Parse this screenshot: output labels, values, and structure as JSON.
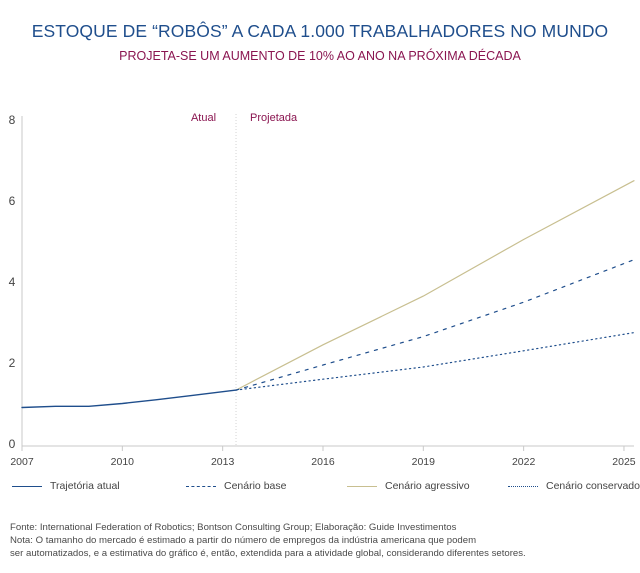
{
  "header": {
    "title": "ESTOQUE DE “ROBÔS” A CADA 1.000 TRABALHADORES NO MUNDO",
    "subtitle": "PROJETA-SE UM AUMENTO DE 10% AO ANO NA PRÓXIMA DÉCADA"
  },
  "chart_data": {
    "type": "line",
    "title": "ESTOQUE DE “ROBÔS” A CADA 1.000 TRABALHADORES NO MUNDO",
    "subtitle": "PROJETA-SE UM AUMENTO DE 10% AO ANO NA PRÓXIMA DÉCADA",
    "xlabel": "",
    "ylabel": "",
    "xlim": [
      2007,
      2025.3
    ],
    "ylim": [
      0,
      8
    ],
    "x_ticks": [
      2007,
      2010,
      2013,
      2016,
      2019,
      2022,
      2025
    ],
    "y_ticks": [
      0,
      2,
      4,
      6,
      8
    ],
    "grid": false,
    "legend_position": "bottom",
    "annotations": {
      "divider_x": 2013.4,
      "left_label": "Atual",
      "right_label": "Projetada"
    },
    "series": [
      {
        "name": "Trajetória atual",
        "style": "solid",
        "color": "#1f4e8c",
        "points": [
          [
            2007,
            0.95
          ],
          [
            2008,
            0.98
          ],
          [
            2009,
            0.98
          ],
          [
            2010,
            1.05
          ],
          [
            2011,
            1.14
          ],
          [
            2012,
            1.24
          ],
          [
            2013.4,
            1.38
          ]
        ]
      },
      {
        "name": "Cenário base",
        "style": "dashed",
        "color": "#1f4e8c",
        "points": [
          [
            2013.4,
            1.38
          ],
          [
            2016,
            2.0
          ],
          [
            2019,
            2.7
          ],
          [
            2022,
            3.55
          ],
          [
            2025.3,
            4.6
          ]
        ]
      },
      {
        "name": "Cenário agressivo",
        "style": "solid",
        "color": "#c8bf90",
        "points": [
          [
            2013.4,
            1.38
          ],
          [
            2016,
            2.5
          ],
          [
            2019,
            3.7
          ],
          [
            2022,
            5.1
          ],
          [
            2025.3,
            6.55
          ]
        ]
      },
      {
        "name": "Cenário conservador",
        "style": "dotted",
        "color": "#1f4e8c",
        "points": [
          [
            2013.4,
            1.38
          ],
          [
            2016,
            1.65
          ],
          [
            2019,
            1.95
          ],
          [
            2022,
            2.35
          ],
          [
            2025.3,
            2.8
          ]
        ]
      }
    ]
  },
  "footer": {
    "source": "Fonte: International Federation of Robotics; Bontson Consulting Group; Elaboração: Guide Investimentos",
    "note_line1": "Nota: O tamanho do mercado é estimado a partir do número de empregos da indústria americana que podem",
    "note_line2": "ser automatizados, e a estimativa do gráfico é, então, extendida para a atividade global, considerando diferentes setores."
  },
  "colors": {
    "navy": "#1f4e8c",
    "magenta": "#8a1550",
    "beige": "#c8bf90",
    "axis": "#c9c9c9",
    "tick_text": "#444444"
  }
}
